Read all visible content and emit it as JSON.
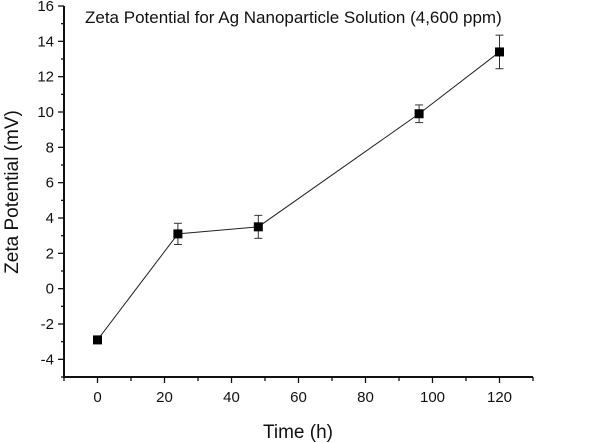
{
  "chart_data": {
    "type": "line",
    "title": "Zeta Potential for Ag Nanoparticle Solution (4,600 ppm)",
    "xlabel": "Time (h)",
    "ylabel": "Zeta Potential (mV)",
    "xlim": [
      -10,
      130
    ],
    "ylim": [
      -5,
      16
    ],
    "xticks": [
      0,
      20,
      40,
      60,
      80,
      100,
      120
    ],
    "yticks": [
      -4,
      -2,
      0,
      2,
      4,
      6,
      8,
      10,
      12,
      14,
      16
    ],
    "grid": false,
    "series": [
      {
        "name": "Zeta Potential",
        "x": [
          0,
          24,
          48,
          96,
          120
        ],
        "y": [
          -2.9,
          3.1,
          3.5,
          9.9,
          13.4
        ],
        "error": [
          0.1,
          0.6,
          0.65,
          0.5,
          0.95
        ],
        "marker": "square",
        "color": "#000000"
      }
    ]
  }
}
